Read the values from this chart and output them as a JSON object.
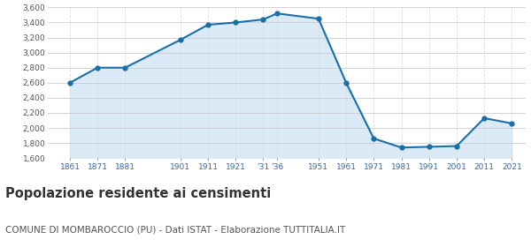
{
  "years": [
    1861,
    1871,
    1881,
    1901,
    1911,
    1921,
    1931,
    1936,
    1951,
    1961,
    1971,
    1981,
    1991,
    2001,
    2011,
    2021
  ],
  "population": [
    2600,
    2800,
    2800,
    3170,
    3370,
    3400,
    3440,
    3520,
    3450,
    2600,
    1860,
    1740,
    1750,
    1760,
    2130,
    2060
  ],
  "xlim": [
    1853,
    2026
  ],
  "ylim": [
    1600,
    3600
  ],
  "yticks": [
    1600,
    1800,
    2000,
    2200,
    2400,
    2600,
    2800,
    3000,
    3200,
    3400,
    3600
  ],
  "ytick_labels": [
    "1,600",
    "1,800",
    "2,000",
    "2,200",
    "2,400",
    "2,600",
    "2,800",
    "3,000",
    "3,200",
    "3,400",
    "3,600"
  ],
  "x_tick_positions": [
    1861,
    1871,
    1881,
    1901,
    1911,
    1921,
    1931,
    1936,
    1951,
    1961,
    1971,
    1981,
    1991,
    2001,
    2011,
    2021
  ],
  "x_tick_labels": [
    "1861",
    "1871",
    "1881",
    "1901",
    "1911",
    "1921",
    "’31",
    "’36",
    "1951",
    "1961",
    "1971",
    "1981",
    "1991",
    "2001",
    "2011",
    "2021"
  ],
  "line_color": "#1a6fa8",
  "fill_color": "#daeaf7",
  "marker_color": "#1a6fa8",
  "bg_color": "#ffffff",
  "plot_bg_color": "#ffffff",
  "grid_color_h": "#cccccc",
  "grid_color_v": "#dddddd",
  "tick_label_color": "#3366aa",
  "ytick_label_color": "#555555",
  "title": "Popolazione residente ai censimenti",
  "subtitle": "COMUNE DI MOMBAROCCIO (PU) - Dati ISTAT - Elaborazione TUTTITALIA.IT",
  "title_fontsize": 10.5,
  "subtitle_fontsize": 7.5
}
